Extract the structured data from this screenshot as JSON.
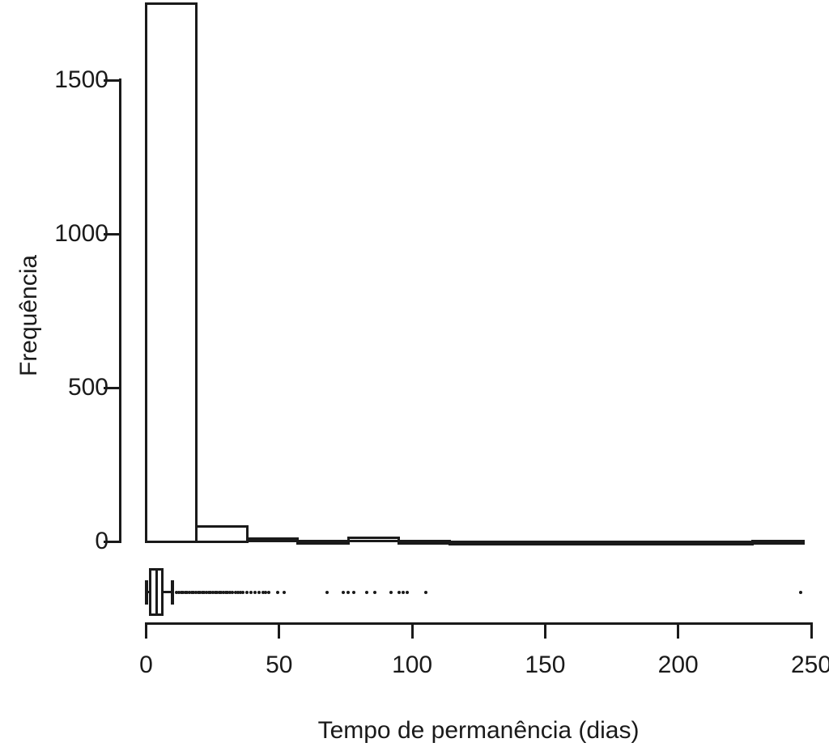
{
  "figure": {
    "description": "Base-R style figure: histogram of hospital length of stay with a horizontal boxplot strip beneath it",
    "background_color": "#ffffff",
    "foreground_color": "#1a1a1a"
  },
  "chart_data": [
    {
      "type": "bar",
      "subtype": "histogram",
      "title": "",
      "xlabel": "Tempo de permanência (dias)",
      "ylabel": "Frequência",
      "bin_edges": [
        0,
        19,
        38,
        57,
        76,
        95,
        114,
        133,
        152,
        171,
        190,
        209,
        228,
        247
      ],
      "counts": [
        1750,
        50,
        10,
        2,
        12,
        2,
        0,
        0,
        0,
        0,
        0,
        0,
        1
      ],
      "xlim": [
        0,
        250
      ],
      "ylim": [
        0,
        1500
      ],
      "x_ticks": [
        0,
        50,
        100,
        150,
        200,
        250
      ],
      "y_ticks": [
        0,
        500,
        1000,
        1500
      ],
      "grid": false,
      "legend": false,
      "bar_fill": "#ffffff",
      "bar_stroke": "#1a1a1a"
    },
    {
      "type": "boxplot",
      "orientation": "horizontal",
      "stats": {
        "whisker_low": 0,
        "q1": 1.5,
        "median": 4,
        "q3": 6,
        "whisker_high": 10
      },
      "outliers": [
        11.5,
        12.3,
        13.1,
        13.9,
        14.7,
        15.5,
        16.3,
        17.1,
        17.9,
        18.7,
        19.5,
        20.3,
        21.1,
        21.9,
        22.7,
        23.5,
        24.3,
        25.1,
        25.9,
        26.7,
        27.5,
        28.3,
        29.1,
        29.9,
        30.7,
        31.5,
        32.5,
        33.5,
        34.5,
        35.5,
        36.5,
        38,
        39.5,
        41,
        42.5,
        44,
        45,
        46,
        49.5,
        52,
        68,
        74,
        76,
        78,
        83,
        86,
        92,
        95,
        96.5,
        98,
        105,
        246
      ],
      "max_value": 247
    }
  ]
}
